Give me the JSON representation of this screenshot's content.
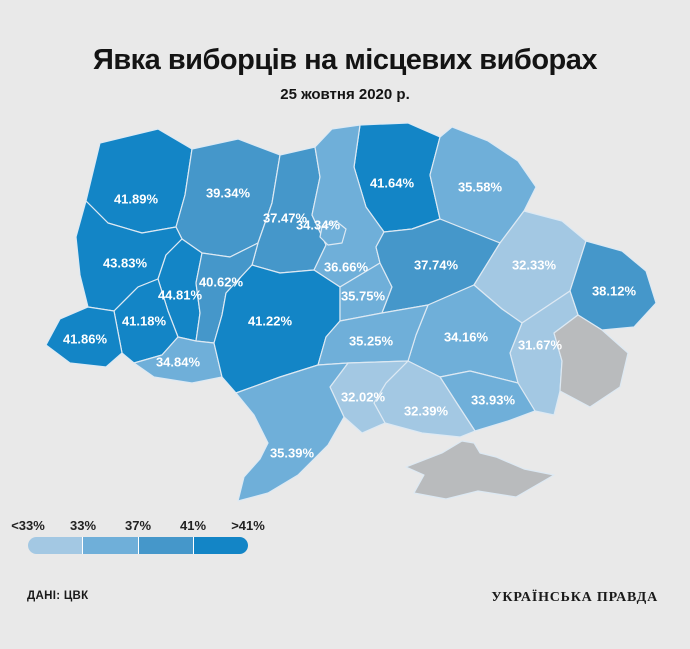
{
  "header": {
    "title": "Явка виборців на місцевих виборах",
    "subtitle": "25 жовтня 2020 р."
  },
  "footer": {
    "source": "ДАНІ: ЦВК",
    "publisher": "УКРАЇНСЬКА ПРАВДА"
  },
  "legend": {
    "ticks": [
      "<33%",
      "33%",
      "37%",
      "41%",
      ">41%"
    ],
    "colors": [
      "#a3c8e3",
      "#6fafd9",
      "#4597ca",
      "#1385c6"
    ]
  },
  "chart_data": {
    "type": "heatmap",
    "subtype": "choropleth map of Ukraine oblasts",
    "title": "Явка виборців на місцевих виборах",
    "date_label": "25 жовтня 2020 р.",
    "unit": "%",
    "value_meaning": "voter turnout",
    "thresholds": [
      33,
      37,
      41
    ],
    "bucket_colors": [
      "#a3c8e3",
      "#6fafd9",
      "#4597ca",
      "#1385c6"
    ],
    "no_data_color": "#b9bbbd",
    "background_color": "#e9e9e9",
    "regions": [
      {
        "id": "volyn",
        "name": "Волинська",
        "label": "41.89%",
        "value": 41.89
      },
      {
        "id": "rivne",
        "name": "Рівненська",
        "label": "39.34%",
        "value": 39.34
      },
      {
        "id": "zhytomyr",
        "name": "Житомирська",
        "label": "37.47%",
        "value": 37.47
      },
      {
        "id": "chernihiv",
        "name": "Чернігівська",
        "label": "41.64%",
        "value": 41.64
      },
      {
        "id": "sumy",
        "name": "Сумська",
        "label": "35.58%",
        "value": 35.58
      },
      {
        "id": "kyiv_oblast",
        "name": "Київська",
        "label": "36.66%",
        "value": 36.66
      },
      {
        "id": "kyiv_city",
        "name": "м. Київ",
        "label": "34.34%",
        "value": 34.34
      },
      {
        "id": "lviv",
        "name": "Львівська",
        "label": "43.83%",
        "value": 43.83
      },
      {
        "id": "ternopil",
        "name": "Тернопільська",
        "label": "44.81%",
        "value": 44.81
      },
      {
        "id": "khmelnytskyi",
        "name": "Хмельницька",
        "label": "40.62%",
        "value": 40.62
      },
      {
        "id": "ivano_frankivsk",
        "name": "Івано-Франківська",
        "label": "41.18%",
        "value": 41.18
      },
      {
        "id": "zakarpattia",
        "name": "Закарпатська",
        "label": "41.86%",
        "value": 41.86
      },
      {
        "id": "chernivtsi",
        "name": "Чернівецька",
        "label": "34.84%",
        "value": 34.84
      },
      {
        "id": "vinnytsia",
        "name": "Вінницька",
        "label": "41.22%",
        "value": 41.22
      },
      {
        "id": "cherkasy",
        "name": "Черкаська",
        "label": "35.75%",
        "value": 35.75
      },
      {
        "id": "poltava",
        "name": "Полтавська",
        "label": "37.74%",
        "value": 37.74
      },
      {
        "id": "kharkiv",
        "name": "Харківська",
        "label": "32.33%",
        "value": 32.33
      },
      {
        "id": "luhansk",
        "name": "Луганська",
        "label": "38.12%",
        "value": 38.12
      },
      {
        "id": "donetsk",
        "name": "Донецька",
        "label": "31.67%",
        "value": 31.67
      },
      {
        "id": "dnipropetrovsk",
        "name": "Дніпропетровська",
        "label": "34.16%",
        "value": 34.16
      },
      {
        "id": "kirovohrad",
        "name": "Кіровоградська",
        "label": "35.25%",
        "value": 35.25
      },
      {
        "id": "zaporizhzhia",
        "name": "Запорізька",
        "label": "33.93%",
        "value": 33.93
      },
      {
        "id": "kherson",
        "name": "Херсонська",
        "label": "32.39%",
        "value": 32.39
      },
      {
        "id": "mykolaiv",
        "name": "Миколаївська",
        "label": "32.02%",
        "value": 32.02
      },
      {
        "id": "odesa",
        "name": "Одеська",
        "label": "35.39%",
        "value": 35.39
      }
    ],
    "no_data_regions": [
      {
        "id": "crimea",
        "name": "АР Крим"
      },
      {
        "id": "donbas_occupied",
        "name": "ОРДЛО"
      }
    ]
  }
}
